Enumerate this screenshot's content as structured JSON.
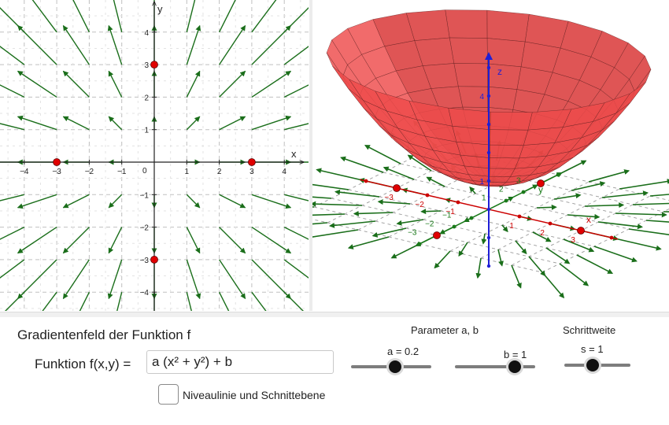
{
  "graphics2d": {
    "x_axis_label": "x",
    "y_axis_label": "y",
    "origin_label": "0",
    "x_ticks": [
      "−4",
      "−3",
      "−2",
      "−1",
      "1",
      "2",
      "3",
      "4"
    ],
    "y_ticks": [
      "4",
      "3",
      "2",
      "1",
      "−1",
      "−2",
      "−3",
      "−4"
    ],
    "points": [
      [
        0,
        3
      ],
      [
        -3,
        0
      ],
      [
        3,
        0
      ],
      [
        0,
        -3
      ]
    ],
    "colors": {
      "arrow": "#1a6e1a",
      "point": "#e00000",
      "grid": "#c0c0c0",
      "axis": "#222222"
    }
  },
  "graphics3d": {
    "x_axis_label": "x",
    "y_axis_label": "y",
    "z_axis_label": "z",
    "x_ticks": [
      "−3",
      "−2",
      "−1",
      "1",
      "2",
      "3"
    ],
    "y_ticks": [
      "−3",
      "−2",
      "−1",
      "1",
      "2",
      "3"
    ],
    "z_ticks": [
      "1",
      "4"
    ],
    "colors": {
      "surface": "#e84040",
      "x_axis": "#cc0000",
      "y_axis": "#1a7a1a",
      "z_axis": "#1f1fd6",
      "arrow": "#1a6e1a"
    }
  },
  "panel": {
    "title": "Gradientenfeld der Funktion f",
    "function_label": "Funktion f(x,y) =",
    "function_value": "a (x² + y²) + b",
    "checkbox_label": "Niveaulinie und Schnittebene",
    "checkbox_checked": false,
    "param_group_title": "Parameter a, b",
    "step_group_title": "Schrittweite",
    "slider_a": {
      "label": "a = 0.2",
      "value": 0.2
    },
    "slider_b": {
      "label": "b = 1",
      "value": 1
    },
    "slider_s": {
      "label": "s = 1",
      "value": 1
    }
  }
}
